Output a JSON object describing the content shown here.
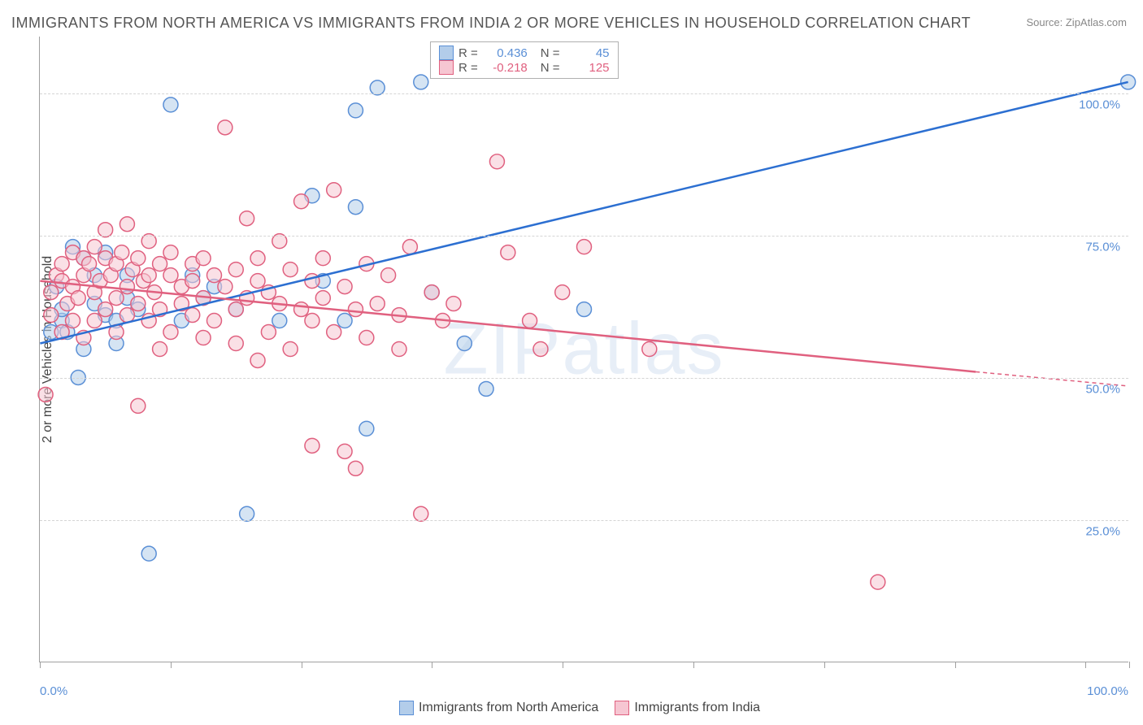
{
  "title": "IMMIGRANTS FROM NORTH AMERICA VS IMMIGRANTS FROM INDIA 2 OR MORE VEHICLES IN HOUSEHOLD CORRELATION CHART",
  "source_prefix": "Source: ",
  "source_name": "ZipAtlas.com",
  "ylabel": "2 or more Vehicles in Household",
  "watermark": "ZIPatlas",
  "chart": {
    "type": "scatter",
    "xlim": [
      0,
      100
    ],
    "ylim": [
      0,
      110
    ],
    "x_ticks": [
      0,
      12,
      24,
      36,
      48,
      60,
      72,
      84,
      96,
      100
    ],
    "x_tick_labels_visible": {
      "0": "0.0%",
      "100": "100.0%"
    },
    "y_gridlines": [
      25,
      50,
      75,
      100
    ],
    "y_tick_labels": {
      "25": "25.0%",
      "50": "50.0%",
      "75": "75.0%",
      "100": "100.0%"
    },
    "grid_color": "#d5d5d5",
    "axis_color": "#a0a0a0",
    "tick_label_color": "#5a8fd6",
    "background_color": "#ffffff",
    "point_radius": 9,
    "point_opacity": 0.55,
    "point_stroke_width": 1.5,
    "line_width": 2.5
  },
  "series": [
    {
      "name": "Immigrants from North America",
      "fill": "#b3cdea",
      "stroke": "#5a8fd6",
      "line_color": "#2c6fd1",
      "R": "0.436",
      "N": "45",
      "regression": {
        "x1": 0,
        "y1": 56,
        "x2": 100,
        "y2": 102
      },
      "points": [
        [
          1,
          58
        ],
        [
          1.5,
          66
        ],
        [
          2,
          60
        ],
        [
          2,
          62
        ],
        [
          2.5,
          58
        ],
        [
          3,
          73
        ],
        [
          3.5,
          50
        ],
        [
          4,
          71
        ],
        [
          4,
          55
        ],
        [
          5,
          63
        ],
        [
          5,
          68
        ],
        [
          6,
          61
        ],
        [
          6,
          72
        ],
        [
          7,
          56
        ],
        [
          7,
          60
        ],
        [
          8,
          68
        ],
        [
          8,
          64
        ],
        [
          9,
          62
        ],
        [
          10,
          19
        ],
        [
          12,
          98
        ],
        [
          13,
          60
        ],
        [
          14,
          68
        ],
        [
          15,
          64
        ],
        [
          16,
          66
        ],
        [
          18,
          62
        ],
        [
          19,
          26
        ],
        [
          22,
          60
        ],
        [
          25,
          82
        ],
        [
          26,
          67
        ],
        [
          28,
          60
        ],
        [
          29,
          80
        ],
        [
          29,
          97
        ],
        [
          30,
          41
        ],
        [
          31,
          101
        ],
        [
          35,
          102
        ],
        [
          36,
          65
        ],
        [
          39,
          56
        ],
        [
          41,
          48
        ],
        [
          50,
          62
        ],
        [
          100,
          102
        ]
      ]
    },
    {
      "name": "Immigrants from India",
      "fill": "#f6c6d2",
      "stroke": "#e0607f",
      "line_color": "#e0607f",
      "R": "-0.218",
      "N": "125",
      "regression": {
        "x1": 0,
        "y1": 67,
        "x2": 86,
        "y2": 51
      },
      "regression_ext": {
        "x1": 86,
        "y1": 51,
        "x2": 100,
        "y2": 48.5
      },
      "points": [
        [
          0.5,
          47
        ],
        [
          1,
          61
        ],
        [
          1,
          65
        ],
        [
          1.5,
          68
        ],
        [
          2,
          58
        ],
        [
          2,
          67
        ],
        [
          2,
          70
        ],
        [
          2.5,
          63
        ],
        [
          3,
          66
        ],
        [
          3,
          72
        ],
        [
          3,
          60
        ],
        [
          3.5,
          64
        ],
        [
          4,
          68
        ],
        [
          4,
          71
        ],
        [
          4,
          57
        ],
        [
          4.5,
          70
        ],
        [
          5,
          65
        ],
        [
          5,
          73
        ],
        [
          5,
          60
        ],
        [
          5.5,
          67
        ],
        [
          6,
          71
        ],
        [
          6,
          62
        ],
        [
          6,
          76
        ],
        [
          6.5,
          68
        ],
        [
          7,
          70
        ],
        [
          7,
          64
        ],
        [
          7,
          58
        ],
        [
          7.5,
          72
        ],
        [
          8,
          66
        ],
        [
          8,
          61
        ],
        [
          8,
          77
        ],
        [
          8.5,
          69
        ],
        [
          9,
          63
        ],
        [
          9,
          71
        ],
        [
          9,
          45
        ],
        [
          9.5,
          67
        ],
        [
          10,
          74
        ],
        [
          10,
          60
        ],
        [
          10,
          68
        ],
        [
          10.5,
          65
        ],
        [
          11,
          70
        ],
        [
          11,
          62
        ],
        [
          11,
          55
        ],
        [
          12,
          68
        ],
        [
          12,
          72
        ],
        [
          12,
          58
        ],
        [
          13,
          66
        ],
        [
          13,
          63
        ],
        [
          14,
          70
        ],
        [
          14,
          61
        ],
        [
          14,
          67
        ],
        [
          15,
          71
        ],
        [
          15,
          57
        ],
        [
          15,
          64
        ],
        [
          16,
          68
        ],
        [
          16,
          60
        ],
        [
          17,
          66
        ],
        [
          17,
          94
        ],
        [
          18,
          62
        ],
        [
          18,
          69
        ],
        [
          18,
          56
        ],
        [
          19,
          78
        ],
        [
          19,
          64
        ],
        [
          20,
          67
        ],
        [
          20,
          53
        ],
        [
          20,
          71
        ],
        [
          21,
          65
        ],
        [
          21,
          58
        ],
        [
          22,
          63
        ],
        [
          22,
          74
        ],
        [
          23,
          69
        ],
        [
          23,
          55
        ],
        [
          24,
          62
        ],
        [
          24,
          81
        ],
        [
          25,
          67
        ],
        [
          25,
          60
        ],
        [
          25,
          38
        ],
        [
          26,
          71
        ],
        [
          26,
          64
        ],
        [
          27,
          58
        ],
        [
          27,
          83
        ],
        [
          28,
          66
        ],
        [
          28,
          37
        ],
        [
          29,
          62
        ],
        [
          29,
          34
        ],
        [
          30,
          70
        ],
        [
          30,
          57
        ],
        [
          31,
          63
        ],
        [
          32,
          68
        ],
        [
          33,
          61
        ],
        [
          33,
          55
        ],
        [
          34,
          73
        ],
        [
          35,
          26
        ],
        [
          36,
          65
        ],
        [
          37,
          60
        ],
        [
          38,
          63
        ],
        [
          42,
          88
        ],
        [
          43,
          72
        ],
        [
          45,
          60
        ],
        [
          46,
          55
        ],
        [
          48,
          65
        ],
        [
          50,
          73
        ],
        [
          56,
          55
        ],
        [
          77,
          14
        ]
      ]
    }
  ],
  "stats_legend": {
    "R_label": "R =",
    "N_label": "N ="
  },
  "bottom_legend": {
    "items": [
      {
        "label": "Immigrants from North America",
        "fill": "#b3cdea",
        "stroke": "#5a8fd6"
      },
      {
        "label": "Immigrants from India",
        "fill": "#f6c6d2",
        "stroke": "#e0607f"
      }
    ]
  }
}
